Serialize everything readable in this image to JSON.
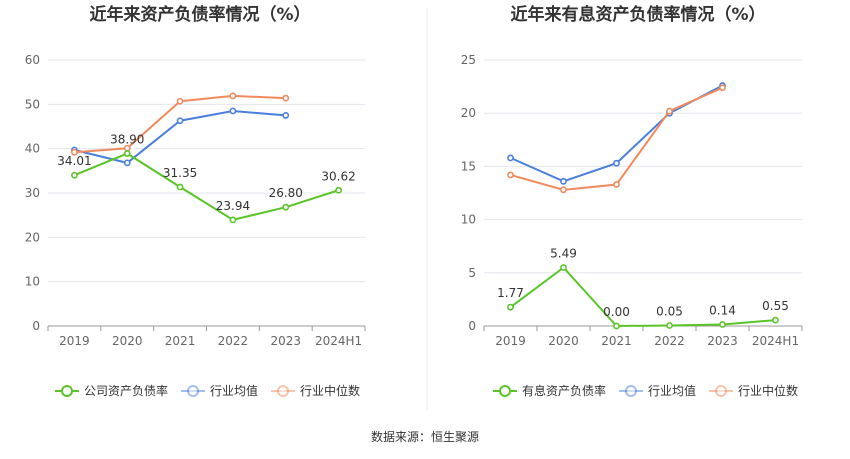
{
  "source_text": "数据来源：恒生聚源",
  "chart_data": [
    {
      "type": "line",
      "title": "近年来资产负债率情况（%）",
      "categories": [
        "2019",
        "2020",
        "2021",
        "2022",
        "2023",
        "2024H1"
      ],
      "ylim": [
        0,
        60
      ],
      "yticks": [
        "0",
        "10",
        "20",
        "30",
        "40",
        "50",
        "60"
      ],
      "grid": true,
      "legend_position": "bottom",
      "series": [
        {
          "name": "公司资产负债率",
          "color": "#5ac428",
          "values": [
            34.01,
            38.9,
            31.35,
            23.94,
            26.8,
            30.62
          ],
          "labels": [
            "34.01",
            "38.90",
            "31.35",
            "23.94",
            "26.80",
            "30.62"
          ]
        },
        {
          "name": "行业均值",
          "color": "#4a7fe0",
          "values": [
            39.7,
            36.8,
            46.3,
            48.5,
            47.5,
            null
          ]
        },
        {
          "name": "行业中位数",
          "color": "#f08a5d",
          "values": [
            39.2,
            40.1,
            50.7,
            51.9,
            51.4,
            null
          ]
        }
      ]
    },
    {
      "type": "line",
      "title": "近年来有息资产负债率情况（%）",
      "categories": [
        "2019",
        "2020",
        "2021",
        "2022",
        "2023",
        "2024H1"
      ],
      "ylim": [
        0,
        25
      ],
      "yticks": [
        "0",
        "5",
        "10",
        "15",
        "20",
        "25"
      ],
      "grid": true,
      "legend_position": "bottom",
      "series": [
        {
          "name": "有息资产负债率",
          "color": "#5ac428",
          "values": [
            1.77,
            5.49,
            0.0,
            0.05,
            0.14,
            0.55
          ],
          "labels": [
            "1.77",
            "5.49",
            "0.00",
            "0.05",
            "0.14",
            "0.55"
          ]
        },
        {
          "name": "行业均值",
          "color": "#4a7fe0",
          "values": [
            15.8,
            13.6,
            15.3,
            20.0,
            22.6,
            null
          ]
        },
        {
          "name": "行业中位数",
          "color": "#f08a5d",
          "values": [
            14.2,
            12.8,
            13.3,
            20.2,
            22.4,
            null
          ]
        }
      ]
    }
  ]
}
